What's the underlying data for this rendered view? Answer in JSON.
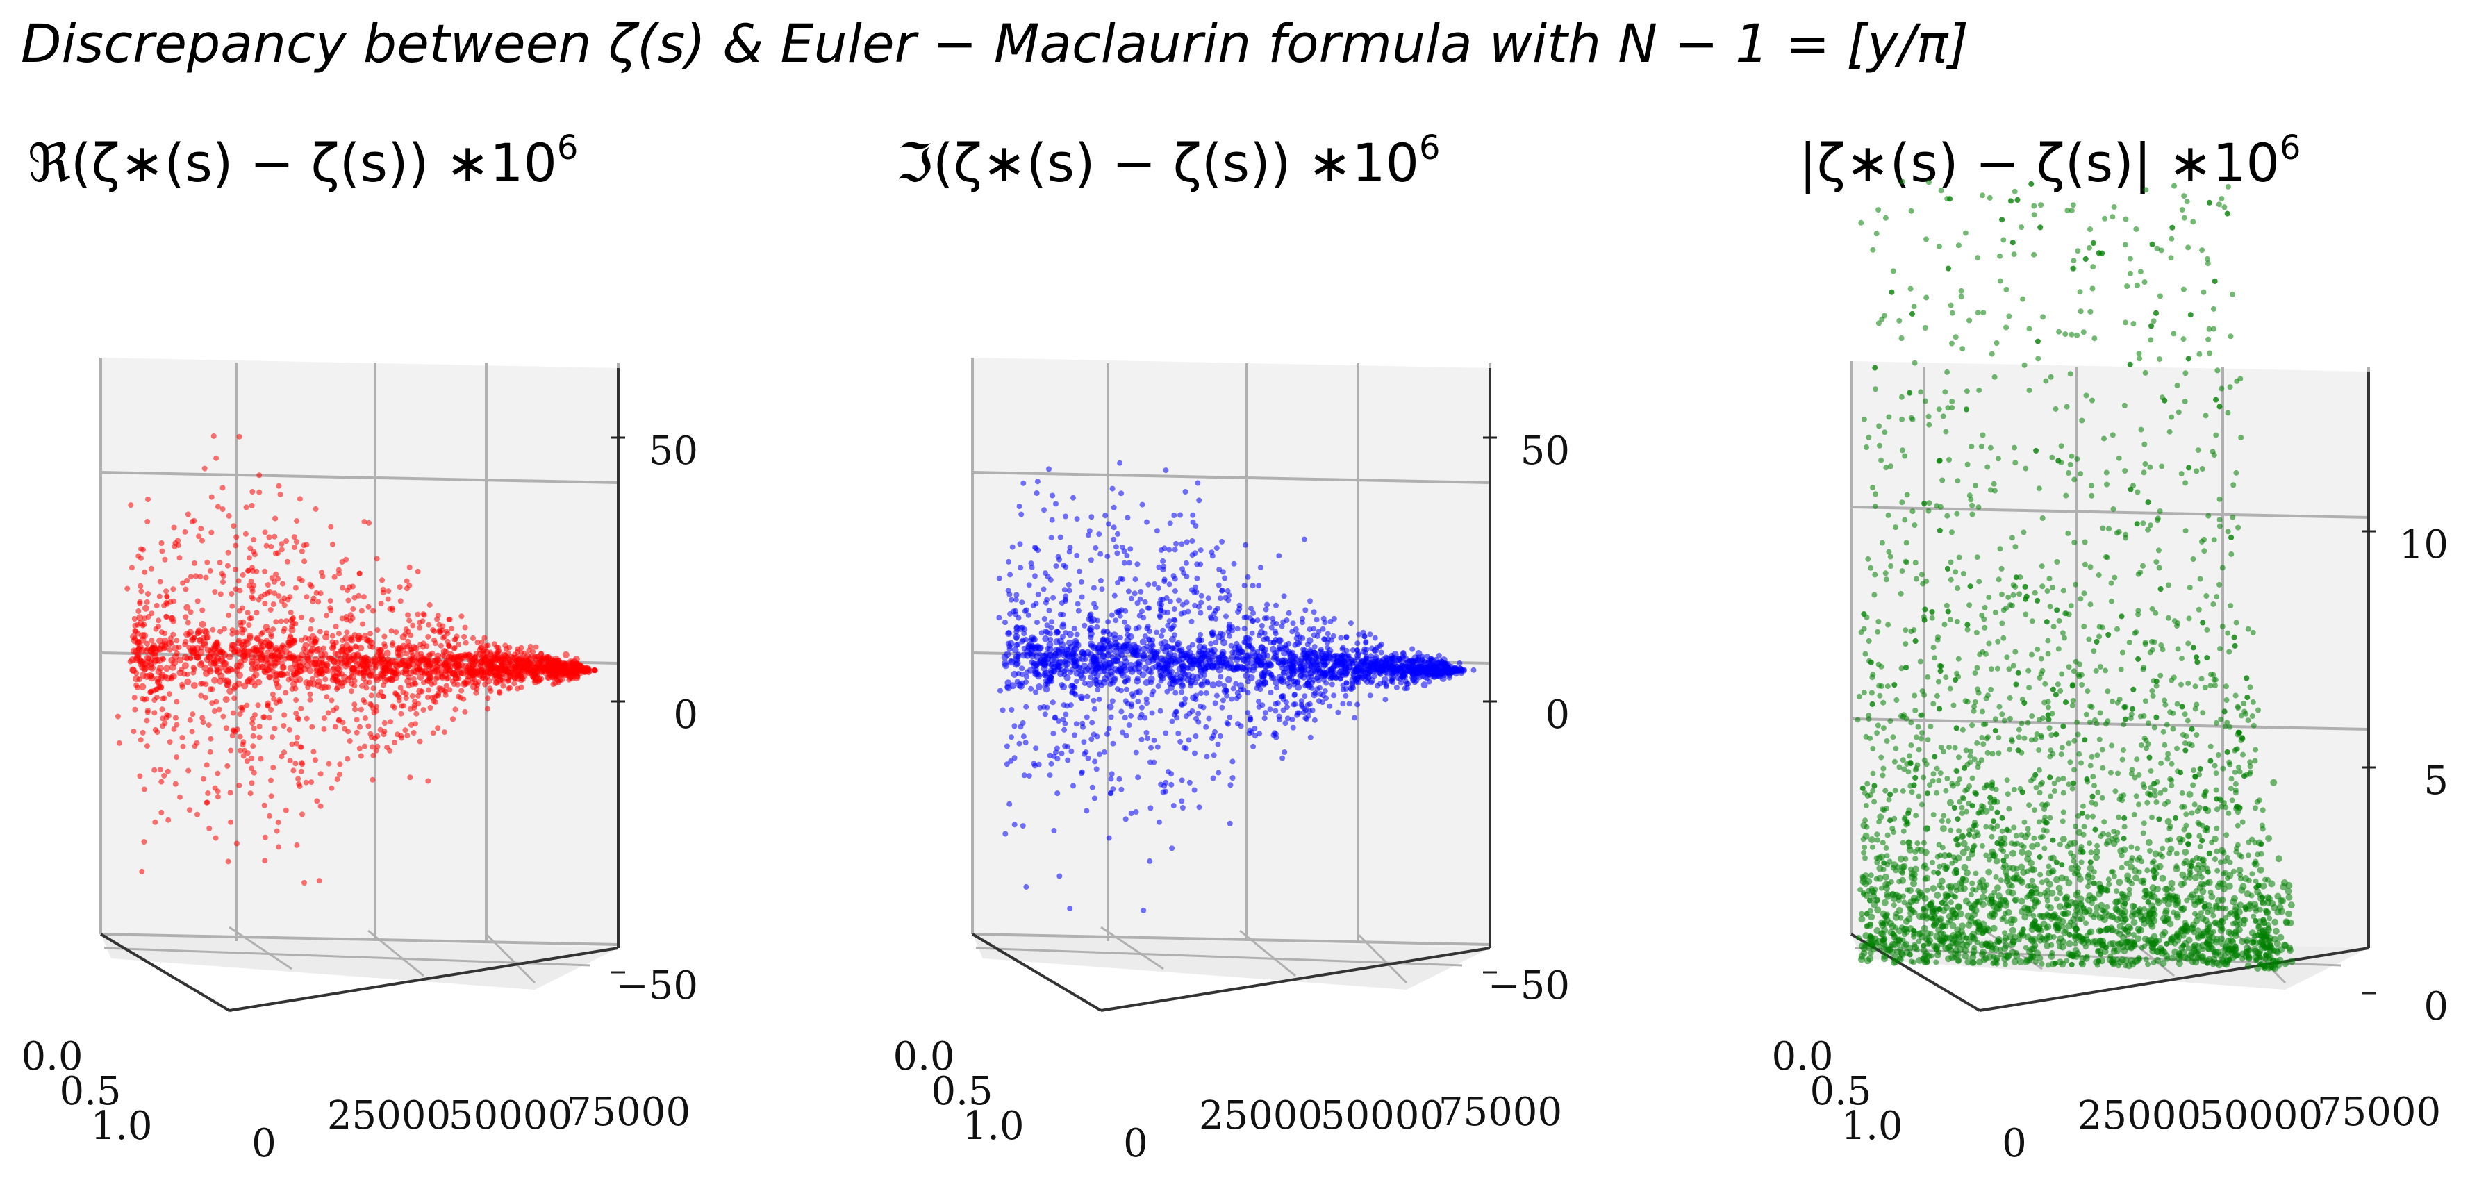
{
  "title": "Discrepancy between ζ(s) & Euler − Maclaurin formula with N − 1 = [y/π]",
  "colors": {
    "real": "#ff0000",
    "imag": "#0000ff",
    "abs": "#008000",
    "grid": "#b0b0b0",
    "pane": "#f2f2f2"
  },
  "chart_data": [
    {
      "type": "scatter",
      "subtitle_prefix": "ℜ",
      "subtitle_body": "(ζ∗(s) − ζ(s))  ∗10",
      "subtitle_exp": "6",
      "color": "#ff0000",
      "x_ticks": [
        "0.0",
        "0.5",
        "1.0"
      ],
      "y_ticks": [
        "0",
        "25000",
        "50000",
        "75000"
      ],
      "z_ticks": [
        "50",
        "0",
        "−50"
      ],
      "zlim": [
        -60,
        60
      ],
      "ylim": [
        0,
        75000
      ],
      "envelope": "funnel narrowing toward y≈75000, spread about ±40 at small y"
    },
    {
      "type": "scatter",
      "subtitle_prefix": "ℑ",
      "subtitle_body": "(ζ∗(s) − ζ(s))  ∗10",
      "subtitle_exp": "6",
      "color": "#0000ff",
      "x_ticks": [
        "0.0",
        "0.5",
        "1.0"
      ],
      "y_ticks": [
        "0",
        "25000",
        "50000",
        "75000"
      ],
      "z_ticks": [
        "50",
        "0",
        "−50"
      ],
      "zlim": [
        -60,
        60
      ],
      "ylim": [
        0,
        75000
      ],
      "envelope": "funnel narrowing toward y≈75000, spread about ±40 at small y"
    },
    {
      "type": "scatter",
      "subtitle_prefix": "|",
      "subtitle_body": "ζ∗(s) − ζ(s)|  ∗10",
      "subtitle_exp": "6",
      "color": "#008000",
      "x_ticks": [
        "0.0",
        "0.5",
        "1.0"
      ],
      "y_ticks": [
        "0",
        "25000",
        "50000",
        "75000"
      ],
      "z_ticks": [
        "10",
        "5",
        "0"
      ],
      "zlim": [
        0,
        12
      ],
      "ylim": [
        0,
        75000
      ],
      "envelope": "dense near 0, sparse up to ~20, dropping to 0 near y≈75000"
    }
  ]
}
